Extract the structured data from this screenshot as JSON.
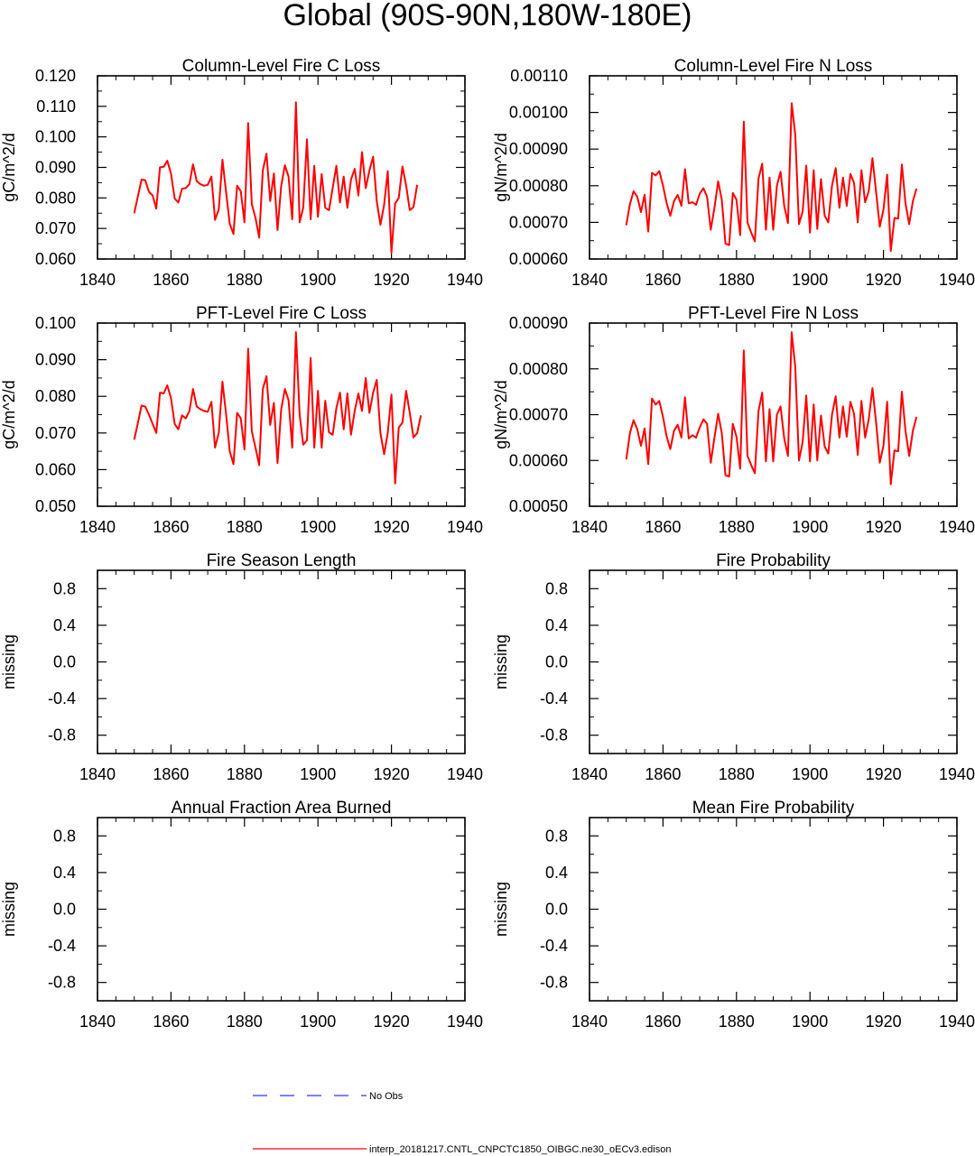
{
  "figure": {
    "title": "Global (90S-90N,180W-180E)"
  },
  "legend": [
    {
      "label": "No Obs",
      "color": "#3333ff",
      "style": "dashed"
    },
    {
      "label": "interp_20181217.CNTL_CNPCTC1850_OIBGC.ne30_oECv3.edison",
      "color": "#ff0000",
      "style": "solid"
    }
  ],
  "chart_data": [
    {
      "type": "line",
      "title": "Column-Level Fire C Loss",
      "xlabel": "",
      "ylabel": "gC/m^2/d",
      "xlim": [
        1840,
        1940
      ],
      "xticks": [
        1840,
        1860,
        1880,
        1900,
        1920,
        1940
      ],
      "ylim": [
        0.06,
        0.12
      ],
      "yticks": [
        0.06,
        0.07,
        0.08,
        0.09,
        0.1,
        0.11,
        0.12
      ],
      "ytick_labels": [
        "0.060",
        "0.070",
        "0.080",
        "0.090",
        "0.100",
        "0.110",
        "0.120"
      ],
      "x_start": 1850,
      "series": [
        {
          "name": "interp_20181217.CNTL_CNPCTC1850_OIBGC.ne30_oECv3.edison",
          "color": "#ff0000",
          "values": [
            0.075,
            0.0806,
            0.086,
            0.0858,
            0.082,
            0.0808,
            0.0765,
            0.09,
            0.0902,
            0.0922,
            0.088,
            0.0798,
            0.0785,
            0.083,
            0.0832,
            0.0845,
            0.091,
            0.0855,
            0.0845,
            0.084,
            0.0843,
            0.087,
            0.0728,
            0.0762,
            0.0925,
            0.082,
            0.0715,
            0.0682,
            0.084,
            0.0822,
            0.072,
            0.1045,
            0.078,
            0.0735,
            0.067,
            0.089,
            0.0945,
            0.079,
            0.088,
            0.0695,
            0.084,
            0.0907,
            0.087,
            0.073,
            0.1113,
            0.072,
            0.0768,
            0.0992,
            0.073,
            0.0905,
            0.0738,
            0.0878,
            0.0768,
            0.076,
            0.0832,
            0.0905,
            0.0785,
            0.087,
            0.0768,
            0.086,
            0.0895,
            0.0808,
            0.095,
            0.0832,
            0.089,
            0.0935,
            0.079,
            0.0712,
            0.0778,
            0.0888,
            0.062,
            0.0782,
            0.08,
            0.0903,
            0.084,
            0.076,
            0.077,
            0.0843
          ]
        }
      ]
    },
    {
      "type": "line",
      "title": "Column-Level Fire N Loss",
      "xlabel": "",
      "ylabel": "gN/m^2/d",
      "xlim": [
        1840,
        1940
      ],
      "xticks": [
        1840,
        1860,
        1880,
        1900,
        1920,
        1940
      ],
      "ylim": [
        0.0006,
        0.0011
      ],
      "yticks": [
        0.0006,
        0.0007,
        0.0008,
        0.0009,
        0.001,
        0.0011
      ],
      "ytick_labels": [
        "0.00060",
        "0.00070",
        "0.00080",
        "0.00090",
        "0.00100",
        "0.00110"
      ],
      "x_start": 1850,
      "series": [
        {
          "name": "interp_20181217.CNTL_CNPCTC1850_OIBGC.ne30_oECv3.edison",
          "color": "#ff0000",
          "values": [
            0.000692,
            0.00075,
            0.000785,
            0.00077,
            0.000728,
            0.000775,
            0.000675,
            0.000835,
            0.000828,
            0.00084,
            0.0008,
            0.000752,
            0.000718,
            0.000758,
            0.000775,
            0.000745,
            0.000845,
            0.000752,
            0.000755,
            0.000748,
            0.000778,
            0.000793,
            0.00077,
            0.00068,
            0.00074,
            0.000812,
            0.000762,
            0.000642,
            0.000638,
            0.00078,
            0.000762,
            0.000665,
            0.000975,
            0.0007,
            0.000672,
            0.000648,
            0.00082,
            0.00086,
            0.00068,
            0.000822,
            0.00068,
            0.0008,
            0.000838,
            0.000745,
            0.000698,
            0.001025,
            0.00094,
            0.000695,
            0.00073,
            0.000855,
            0.000672,
            0.000842,
            0.000682,
            0.000818,
            0.000718,
            0.0007,
            0.0008,
            0.000848,
            0.00074,
            0.000822,
            0.000745,
            0.000832,
            0.000808,
            0.0007,
            0.000842,
            0.000755,
            0.000785,
            0.000875,
            0.000782,
            0.000688,
            0.000735,
            0.00083,
            0.000622,
            0.000712,
            0.00071,
            0.000858,
            0.000752,
            0.000695,
            0.000758,
            0.000792
          ]
        }
      ]
    },
    {
      "type": "line",
      "title": "PFT-Level Fire C Loss",
      "xlabel": "",
      "ylabel": "gC/m^2/d",
      "xlim": [
        1840,
        1940
      ],
      "xticks": [
        1840,
        1860,
        1880,
        1900,
        1920,
        1940
      ],
      "ylim": [
        0.05,
        0.1
      ],
      "yticks": [
        0.05,
        0.06,
        0.07,
        0.08,
        0.09,
        0.1
      ],
      "ytick_labels": [
        "0.050",
        "0.060",
        "0.070",
        "0.080",
        "0.090",
        "0.100"
      ],
      "x_start": 1850,
      "series": [
        {
          "name": "interp_20181217.CNTL_CNPCTC1850_OIBGC.ne30_oECv3.edison",
          "color": "#ff0000",
          "values": [
            0.0682,
            0.0728,
            0.0775,
            0.0772,
            0.075,
            0.0725,
            0.07,
            0.081,
            0.0808,
            0.083,
            0.0795,
            0.0725,
            0.071,
            0.0748,
            0.074,
            0.076,
            0.082,
            0.0772,
            0.0765,
            0.076,
            0.0758,
            0.0785,
            0.066,
            0.07,
            0.084,
            0.0752,
            0.065,
            0.0615,
            0.0755,
            0.074,
            0.0655,
            0.093,
            0.0705,
            0.066,
            0.0612,
            0.082,
            0.0855,
            0.0722,
            0.0782,
            0.0618,
            0.0765,
            0.082,
            0.079,
            0.066,
            0.0975,
            0.075,
            0.0668,
            0.068,
            0.0905,
            0.066,
            0.0815,
            0.066,
            0.0788,
            0.0702,
            0.0695,
            0.0768,
            0.081,
            0.071,
            0.0808,
            0.0695,
            0.076,
            0.0808,
            0.076,
            0.085,
            0.0755,
            0.081,
            0.0845,
            0.07,
            0.0642,
            0.07,
            0.0805,
            0.0562,
            0.0715,
            0.0728,
            0.0815,
            0.0755,
            0.0688,
            0.07,
            0.0748
          ]
        }
      ]
    },
    {
      "type": "line",
      "title": "PFT-Level Fire N Loss",
      "xlabel": "",
      "ylabel": "gN/m^2/d",
      "xlim": [
        1840,
        1940
      ],
      "xticks": [
        1840,
        1860,
        1880,
        1900,
        1920,
        1940
      ],
      "ylim": [
        0.0005,
        0.0009
      ],
      "yticks": [
        0.0005,
        0.0006,
        0.0007,
        0.0008,
        0.0009
      ],
      "ytick_labels": [
        "0.00050",
        "0.00060",
        "0.00070",
        "0.00080",
        "0.00090"
      ],
      "x_start": 1850,
      "series": [
        {
          "name": "interp_20181217.CNTL_CNPCTC1850_OIBGC.ne30_oECv3.edison",
          "color": "#ff0000",
          "values": [
            0.000602,
            0.00066,
            0.000688,
            0.000668,
            0.000632,
            0.00067,
            0.000592,
            0.000735,
            0.000722,
            0.00073,
            0.000695,
            0.000652,
            0.000625,
            0.000665,
            0.000678,
            0.00065,
            0.000738,
            0.000648,
            0.000655,
            0.00065,
            0.000672,
            0.00069,
            0.00068,
            0.000595,
            0.00065,
            0.000702,
            0.00066,
            0.000568,
            0.000565,
            0.00068,
            0.000652,
            0.000582,
            0.00084,
            0.00061,
            0.00059,
            0.000572,
            0.000708,
            0.000748,
            0.000598,
            0.000712,
            0.000598,
            0.0007,
            0.000718,
            0.000648,
            0.00061,
            0.00088,
            0.000805,
            0.0006,
            0.00064,
            0.000742,
            0.000598,
            0.000722,
            0.0006,
            0.000698,
            0.00063,
            0.000615,
            0.0007,
            0.00074,
            0.00065,
            0.000718,
            0.000652,
            0.000728,
            0.000702,
            0.000612,
            0.00073,
            0.00065,
            0.00069,
            0.000758,
            0.000682,
            0.000595,
            0.000632,
            0.000728,
            0.000548,
            0.000622,
            0.00062,
            0.00075,
            0.000665,
            0.00061,
            0.000665,
            0.000695
          ]
        }
      ]
    },
    {
      "type": "line",
      "title": "Fire Season Length",
      "xlabel": "",
      "ylabel": "missing",
      "xlim": [
        1840,
        1940
      ],
      "xticks": [
        1840,
        1860,
        1880,
        1900,
        1920,
        1940
      ],
      "ylim": [
        -1.0,
        1.0
      ],
      "yticks": [
        -0.8,
        -0.4,
        0.0,
        0.4,
        0.8
      ],
      "ytick_labels": [
        "-0.8",
        "-0.4",
        "0.0",
        "0.4",
        "0.8"
      ],
      "series": []
    },
    {
      "type": "line",
      "title": "Fire Probability",
      "xlabel": "",
      "ylabel": "missing",
      "xlim": [
        1840,
        1940
      ],
      "xticks": [
        1840,
        1860,
        1880,
        1900,
        1920,
        1940
      ],
      "ylim": [
        -1.0,
        1.0
      ],
      "yticks": [
        -0.8,
        -0.4,
        0.0,
        0.4,
        0.8
      ],
      "ytick_labels": [
        "-0.8",
        "-0.4",
        "0.0",
        "0.4",
        "0.8"
      ],
      "series": []
    },
    {
      "type": "line",
      "title": "Annual Fraction Area Burned",
      "xlabel": "",
      "ylabel": "missing",
      "xlim": [
        1840,
        1940
      ],
      "xticks": [
        1840,
        1860,
        1880,
        1900,
        1920,
        1940
      ],
      "ylim": [
        -1.0,
        1.0
      ],
      "yticks": [
        -0.8,
        -0.4,
        0.0,
        0.4,
        0.8
      ],
      "ytick_labels": [
        "-0.8",
        "-0.4",
        "0.0",
        "0.4",
        "0.8"
      ],
      "series": []
    },
    {
      "type": "line",
      "title": "Mean Fire Probability",
      "xlabel": "",
      "ylabel": "missing",
      "xlim": [
        1840,
        1940
      ],
      "xticks": [
        1840,
        1860,
        1880,
        1900,
        1920,
        1940
      ],
      "ylim": [
        -1.0,
        1.0
      ],
      "yticks": [
        -0.8,
        -0.4,
        0.0,
        0.4,
        0.8
      ],
      "ytick_labels": [
        "-0.8",
        "-0.4",
        "0.0",
        "0.4",
        "0.8"
      ],
      "series": []
    }
  ]
}
